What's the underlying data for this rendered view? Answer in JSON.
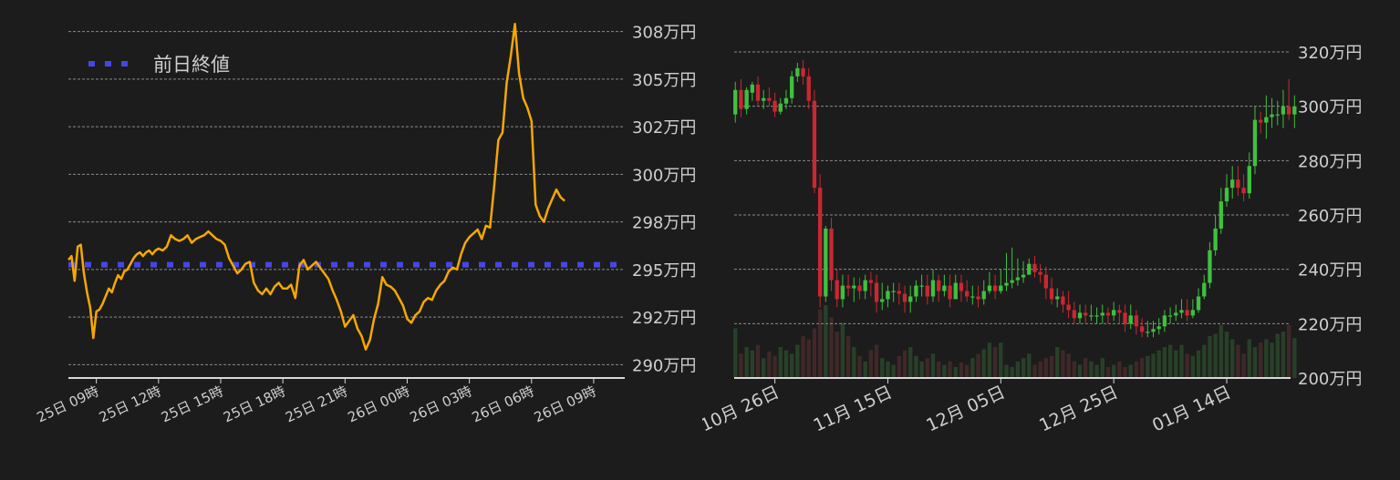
{
  "chart_data": [
    {
      "type": "line",
      "legend": {
        "label": "前日終値",
        "placement": "top-left"
      },
      "colors": {
        "series": "#f5a800",
        "reference": "#4646e8",
        "grid": "#8a8a8a",
        "axis": "#d8d8d8",
        "text": "#cfcfcf"
      },
      "y_ticks": [
        {
          "value": 290,
          "label": "290万円"
        },
        {
          "value": 292.5,
          "label": "292万円"
        },
        {
          "value": 295,
          "label": "295万円"
        },
        {
          "value": 297.5,
          "label": "298万円"
        },
        {
          "value": 300,
          "label": "300万円"
        },
        {
          "value": 302.5,
          "label": "302万円"
        },
        {
          "value": 305,
          "label": "305万円"
        },
        {
          "value": 307.5,
          "label": "308万円"
        }
      ],
      "x_ticks": [
        {
          "value": 0,
          "label": "25日 09時"
        },
        {
          "value": 3,
          "label": "25日 12時"
        },
        {
          "value": 6,
          "label": "25日 15時"
        },
        {
          "value": 9,
          "label": "25日 18時"
        },
        {
          "value": 12,
          "label": "25日 21時"
        },
        {
          "value": 15,
          "label": "26日 00時"
        },
        {
          "value": 18,
          "label": "26日 03時"
        },
        {
          "value": 21,
          "label": "26日 06時"
        },
        {
          "value": 24,
          "label": "26日 09時"
        }
      ],
      "xlim": [
        -1.35,
        25.5
      ],
      "ylim": [
        289.3,
        308.2
      ],
      "reference_value": 295.25,
      "series": [
        {
          "x": [
            -1.35,
            -1.2,
            -1.05,
            -0.9,
            -0.75,
            -0.6,
            -0.45,
            -0.3,
            -0.15,
            0.0,
            0.15,
            0.3,
            0.45,
            0.6,
            0.75,
            0.9,
            1.05,
            1.2,
            1.35,
            1.5,
            1.65,
            1.8,
            1.95,
            2.1,
            2.25,
            2.4,
            2.55,
            2.7,
            2.85,
            3.0,
            3.2,
            3.4,
            3.6,
            3.8,
            4.0,
            4.2,
            4.4,
            4.6,
            4.8,
            5.0,
            5.2,
            5.4,
            5.6,
            5.8,
            6.0,
            6.2,
            6.4,
            6.6,
            6.8,
            7.0,
            7.2,
            7.4,
            7.6,
            7.8,
            8.0,
            8.2,
            8.4,
            8.6,
            8.8,
            9.0,
            9.2,
            9.4,
            9.6,
            9.8,
            10.0,
            10.2,
            10.4,
            10.6,
            10.8,
            11.0,
            11.2,
            11.4,
            11.6,
            11.8,
            12.0,
            12.2,
            12.4,
            12.6,
            12.8,
            13.0,
            13.2,
            13.4,
            13.6,
            13.8,
            14.0,
            14.2,
            14.4,
            14.6,
            14.8,
            15.0,
            15.2,
            15.4,
            15.6,
            15.8,
            16.0,
            16.2,
            16.4,
            16.6,
            16.8,
            17.0,
            17.2,
            17.4,
            17.6,
            17.8,
            18.0,
            18.2,
            18.4,
            18.6,
            18.8,
            19.0,
            19.2,
            19.4,
            19.6,
            19.8,
            20.0,
            20.2,
            20.4,
            20.6,
            20.8,
            21.0,
            21.2,
            21.4,
            21.6,
            21.8,
            22.0,
            22.2,
            22.4,
            22.6
          ],
          "values": [
            295.5,
            295.7,
            294.4,
            296.2,
            296.3,
            294.8,
            293.8,
            293.0,
            291.4,
            292.8,
            292.9,
            293.2,
            293.6,
            294.0,
            293.8,
            294.3,
            294.7,
            294.5,
            294.9,
            295.0,
            295.3,
            295.6,
            295.8,
            295.9,
            295.7,
            295.9,
            296.0,
            295.8,
            296.0,
            296.1,
            296.0,
            296.2,
            296.8,
            296.6,
            296.5,
            296.6,
            296.8,
            296.4,
            296.6,
            296.7,
            296.8,
            297.0,
            296.8,
            296.6,
            296.5,
            296.3,
            295.6,
            295.2,
            294.8,
            295.0,
            295.3,
            295.4,
            294.3,
            293.9,
            293.7,
            294.0,
            293.7,
            294.1,
            294.3,
            294.0,
            294.0,
            294.2,
            293.5,
            295.2,
            295.5,
            295.0,
            295.2,
            295.4,
            295.1,
            294.8,
            294.5,
            293.9,
            293.4,
            292.8,
            292.0,
            292.3,
            292.6,
            291.9,
            291.5,
            290.8,
            291.3,
            292.4,
            293.2,
            294.6,
            294.2,
            294.1,
            293.9,
            293.5,
            293.1,
            292.4,
            292.2,
            292.6,
            292.8,
            293.3,
            293.5,
            293.4,
            293.9,
            294.2,
            294.4,
            294.9,
            295.1,
            295.0,
            295.8,
            296.4,
            296.7,
            296.9,
            297.1,
            296.6,
            297.3,
            297.2,
            299.4,
            301.8,
            302.2,
            304.8,
            306.2,
            307.9,
            305.3,
            304.0,
            303.5,
            302.8,
            298.4,
            297.8,
            297.5,
            298.2,
            298.7,
            299.2,
            298.8,
            298.6
          ]
        }
      ]
    },
    {
      "type": "candlestick",
      "colors": {
        "up": "#3fc03f",
        "down": "#c82832",
        "grid": "#8a8a8a",
        "axis": "#d8d8d8",
        "text": "#cfcfcf"
      },
      "y_ticks": [
        {
          "value": 200,
          "label": "200万円"
        },
        {
          "value": 220,
          "label": "220万円"
        },
        {
          "value": 240,
          "label": "240万円"
        },
        {
          "value": 260,
          "label": "260万円"
        },
        {
          "value": 280,
          "label": "280万円"
        },
        {
          "value": 300,
          "label": "300万円"
        },
        {
          "value": 320,
          "label": "320万円"
        }
      ],
      "x_ticks": [
        {
          "value": 7,
          "label": "10月 26日"
        },
        {
          "value": 27,
          "label": "11月 15日"
        },
        {
          "value": 47,
          "label": "12月 05日"
        },
        {
          "value": 67,
          "label": "12月 25日"
        },
        {
          "value": 87,
          "label": "01月 14日"
        }
      ],
      "xlim": [
        -0.2,
        98.3
      ],
      "ylim": [
        200,
        325.7
      ],
      "candles": {
        "open": [
          297,
          306,
          299,
          305,
          308,
          302,
          303,
          302,
          298,
          301,
          303,
          311,
          314,
          311,
          302,
          270,
          230,
          255,
          236,
          229,
          234,
          233,
          234,
          232,
          236,
          235,
          228,
          229,
          232,
          232,
          231,
          228,
          230,
          234,
          234,
          230,
          236,
          232,
          234,
          229,
          235,
          232,
          230,
          230,
          229,
          232,
          234,
          232,
          234,
          235,
          236,
          237,
          238,
          242,
          239,
          238,
          233,
          229,
          230,
          227,
          225,
          222,
          224,
          223,
          223,
          223,
          224,
          223,
          225,
          224,
          220,
          223,
          219,
          217,
          217,
          218,
          219,
          223,
          223,
          224,
          225,
          223,
          225,
          230,
          235,
          247,
          255,
          265,
          270,
          273,
          270,
          268,
          278,
          295,
          294,
          296,
          297,
          297,
          300,
          297
        ],
        "close": [
          306,
          299,
          306,
          308,
          302,
          303,
          302,
          298,
          301,
          303,
          311,
          314,
          311,
          302,
          270,
          230,
          255,
          236,
          229,
          234,
          233,
          234,
          232,
          236,
          235,
          228,
          229,
          232,
          232,
          231,
          228,
          230,
          234,
          234,
          230,
          236,
          232,
          234,
          229,
          235,
          232,
          230,
          230,
          229,
          232,
          234,
          232,
          234,
          235,
          236,
          237,
          238,
          242,
          239,
          238,
          233,
          229,
          230,
          227,
          225,
          222,
          224,
          223,
          223,
          223,
          224,
          223,
          225,
          224,
          220,
          223,
          219,
          217,
          217,
          218,
          219,
          223,
          223,
          224,
          225,
          223,
          225,
          230,
          235,
          247,
          255,
          265,
          270,
          273,
          270,
          268,
          278,
          295,
          294,
          296,
          297,
          297,
          300,
          297,
          300
        ],
        "high": [
          309,
          310,
          307,
          309,
          311,
          306,
          307,
          305,
          303,
          306,
          313,
          316,
          317,
          314,
          306,
          275,
          256,
          259,
          240,
          238,
          238,
          237,
          237,
          238,
          239,
          238,
          235,
          234,
          235,
          235,
          234,
          234,
          236,
          238,
          238,
          240,
          238,
          238,
          238,
          238,
          238,
          236,
          234,
          234,
          236,
          239,
          238,
          240,
          246,
          248,
          244,
          243,
          244,
          245,
          242,
          241,
          237,
          233,
          232,
          232,
          228,
          227,
          227,
          227,
          226,
          227,
          226,
          228,
          227,
          227,
          227,
          225,
          222,
          221,
          221,
          222,
          225,
          226,
          227,
          229,
          229,
          229,
          233,
          238,
          250,
          260,
          270,
          275,
          278,
          278,
          275,
          283,
          300,
          298,
          304,
          303,
          302,
          306,
          310,
          304
        ],
        "low": [
          294,
          296,
          297,
          302,
          300,
          299,
          300,
          296,
          297,
          299,
          301,
          309,
          308,
          299,
          268,
          226,
          228,
          232,
          226,
          226,
          230,
          228,
          229,
          229,
          230,
          224,
          225,
          226,
          228,
          227,
          224,
          224,
          228,
          230,
          227,
          228,
          228,
          230,
          226,
          230,
          228,
          228,
          227,
          226,
          227,
          231,
          229,
          231,
          232,
          233,
          234,
          235,
          238,
          237,
          235,
          229,
          227,
          226,
          224,
          222,
          220,
          220,
          220,
          221,
          220,
          220,
          220,
          221,
          220,
          217,
          218,
          216,
          215,
          215,
          215,
          216,
          217,
          220,
          221,
          222,
          221,
          222,
          224,
          229,
          233,
          245,
          253,
          263,
          266,
          267,
          265,
          266,
          275,
          290,
          288,
          292,
          293,
          292,
          295,
          292
        ]
      },
      "volume": [
        45,
        22,
        28,
        25,
        30,
        18,
        24,
        20,
        28,
        25,
        22,
        30,
        38,
        35,
        45,
        62,
        66,
        55,
        42,
        50,
        38,
        28,
        20,
        15,
        25,
        30,
        18,
        15,
        12,
        20,
        25,
        28,
        20,
        15,
        18,
        22,
        15,
        12,
        15,
        10,
        14,
        12,
        18,
        22,
        26,
        32,
        28,
        32,
        12,
        10,
        15,
        18,
        22,
        12,
        15,
        18,
        20,
        28,
        25,
        22,
        15,
        12,
        18,
        15,
        12,
        18,
        10,
        12,
        15,
        10,
        12,
        15,
        18,
        20,
        22,
        25,
        28,
        30,
        25,
        30,
        22,
        20,
        25,
        30,
        38,
        40,
        48,
        42,
        35,
        30,
        22,
        35,
        28,
        32,
        35,
        32,
        40,
        42,
        48,
        36
      ]
    }
  ]
}
